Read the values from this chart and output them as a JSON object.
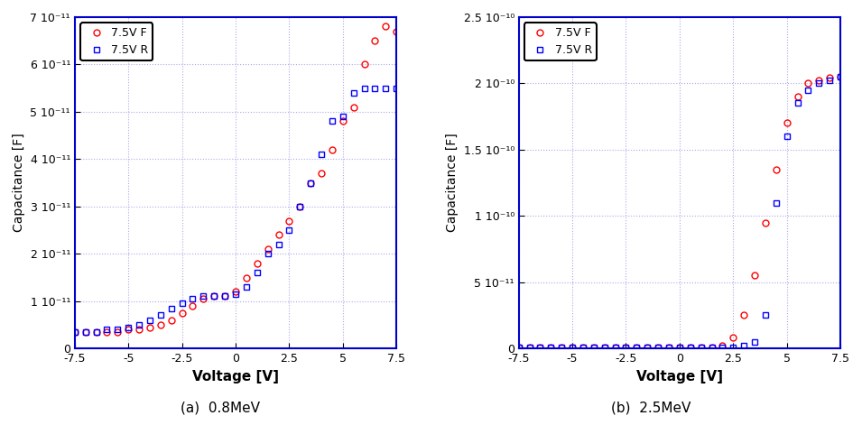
{
  "plot_a": {
    "title": "(a)  0.8MeV",
    "xlabel": "Voltage [V]",
    "ylabel": "Capacitance [F]",
    "xlim": [
      -7.5,
      7.5
    ],
    "ylim": [
      0,
      7e-11
    ],
    "yticks": [
      0,
      1e-11,
      2e-11,
      3e-11,
      4e-11,
      5e-11,
      6e-11,
      7e-11
    ],
    "ytick_labels": [
      "0",
      "1 10-11",
      "2 10-11",
      "3 10-11",
      "4 10-11",
      "5 10-11",
      "6 10-11",
      "7 10-11"
    ],
    "xticks": [
      -7.5,
      -5,
      -2.5,
      0,
      2.5,
      5,
      7.5
    ],
    "legend": [
      "7.5V F",
      "7.5V R"
    ],
    "forward_color": "#ff0000",
    "reverse_color": "#0000ff",
    "forward_x": [
      -7.5,
      -7.0,
      -6.5,
      -6.0,
      -5.5,
      -5.0,
      -4.5,
      -4.0,
      -3.5,
      -3.0,
      -2.5,
      -2.0,
      -1.5,
      -1.0,
      -0.5,
      0.0,
      0.5,
      1.0,
      1.5,
      2.0,
      2.5,
      3.0,
      3.5,
      4.0,
      4.5,
      5.0,
      5.5,
      6.0,
      6.5,
      7.0,
      7.5
    ],
    "forward_y": [
      3.5e-12,
      3.5e-12,
      3.5e-12,
      3.5e-12,
      3.5e-12,
      4e-12,
      4e-12,
      4.5e-12,
      5e-12,
      6e-12,
      7.5e-12,
      9e-12,
      1.05e-11,
      1.1e-11,
      1.1e-11,
      1.2e-11,
      1.5e-11,
      1.8e-11,
      2.1e-11,
      2.4e-11,
      2.7e-11,
      3e-11,
      3.5e-11,
      3.7e-11,
      4.2e-11,
      4.8e-11,
      5.1e-11,
      6e-11,
      6.5e-11,
      6.8e-11,
      6.7e-11
    ],
    "reverse_x": [
      -7.5,
      -7.0,
      -6.5,
      -6.0,
      -5.5,
      -5.0,
      -4.5,
      -4.0,
      -3.5,
      -3.0,
      -2.5,
      -2.0,
      -1.5,
      -1.0,
      -0.5,
      0.0,
      0.5,
      1.0,
      1.5,
      2.0,
      2.5,
      3.0,
      3.5,
      4.0,
      4.5,
      5.0,
      5.5,
      6.0,
      6.5,
      7.0,
      7.5
    ],
    "reverse_y": [
      3.5e-12,
      3.5e-12,
      3.5e-12,
      4e-12,
      4e-12,
      4.5e-12,
      5e-12,
      6e-12,
      7e-12,
      8.5e-12,
      9.5e-12,
      1.05e-11,
      1.1e-11,
      1.1e-11,
      1.1e-11,
      1.15e-11,
      1.3e-11,
      1.6e-11,
      2e-11,
      2.2e-11,
      2.5e-11,
      3e-11,
      3.5e-11,
      4.1e-11,
      4.8e-11,
      4.9e-11,
      5.4e-11,
      5.5e-11,
      5.5e-11,
      5.5e-11,
      5.5e-11
    ]
  },
  "plot_b": {
    "title": "(b)  2.5MeV",
    "xlabel": "Voltage [V]",
    "ylabel": "Capacitance [F]",
    "xlim": [
      -7.5,
      7.5
    ],
    "ylim": [
      0,
      2.5e-10
    ],
    "yticks": [
      0,
      5e-11,
      1e-10,
      1.5e-10,
      2e-10,
      2.5e-10
    ],
    "ytick_labels": [
      "0",
      "5 10-11",
      "1 10-10",
      "1.5 10-10",
      "2 10-10",
      "2.5 10-10"
    ],
    "xticks": [
      -7.5,
      -5,
      -2.5,
      0,
      2.5,
      5,
      7.5
    ],
    "legend": [
      "7.5V F",
      "7.5V R"
    ],
    "forward_color": "#ff0000",
    "reverse_color": "#0000ff",
    "forward_x": [
      -7.5,
      -7.0,
      -6.5,
      -6.0,
      -5.5,
      -5.0,
      -4.5,
      -4.0,
      -3.5,
      -3.0,
      -2.5,
      -2.0,
      -1.5,
      -1.0,
      -0.5,
      0.0,
      0.5,
      1.0,
      1.5,
      2.0,
      2.5,
      3.0,
      3.5,
      4.0,
      4.5,
      5.0,
      5.5,
      6.0,
      6.5,
      7.0,
      7.5
    ],
    "forward_y": [
      5e-13,
      5e-13,
      5e-13,
      5e-13,
      5e-13,
      5e-13,
      5e-13,
      5e-13,
      5e-13,
      5e-13,
      5e-13,
      5e-13,
      5e-13,
      5e-13,
      5e-13,
      5e-13,
      5e-13,
      5e-13,
      5e-13,
      2e-12,
      8e-12,
      2.5e-11,
      5.5e-11,
      9.5e-11,
      1.35e-10,
      1.7e-10,
      1.9e-10,
      2e-10,
      2.02e-10,
      2.04e-10,
      2.05e-10
    ],
    "reverse_x": [
      -7.5,
      -7.0,
      -6.5,
      -6.0,
      -5.5,
      -5.0,
      -4.5,
      -4.0,
      -3.5,
      -3.0,
      -2.5,
      -2.0,
      -1.5,
      -1.0,
      -0.5,
      0.0,
      0.5,
      1.0,
      1.5,
      2.0,
      2.5,
      3.0,
      3.5,
      4.0,
      4.5,
      5.0,
      5.5,
      6.0,
      6.5,
      7.0,
      7.5
    ],
    "reverse_y": [
      5e-13,
      5e-13,
      5e-13,
      5e-13,
      5e-13,
      5e-13,
      5e-13,
      5e-13,
      5e-13,
      5e-13,
      5e-13,
      5e-13,
      5e-13,
      5e-13,
      5e-13,
      5e-13,
      5e-13,
      5e-13,
      5e-13,
      5e-13,
      5e-13,
      2e-12,
      5e-12,
      2.5e-11,
      1.1e-10,
      1.6e-10,
      1.85e-10,
      1.95e-10,
      2e-10,
      2.02e-10,
      2.05e-10
    ]
  },
  "bg_color": "#ffffff",
  "plot_border_color": "#0000cc",
  "grid_color": "#aaaaee",
  "grid_linestyle": ":"
}
